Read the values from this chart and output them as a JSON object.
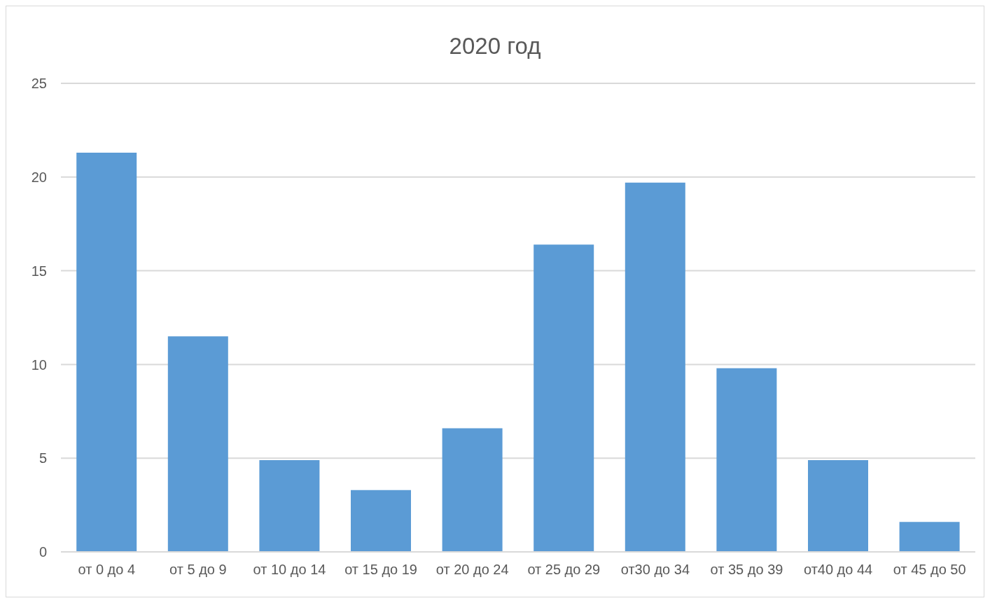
{
  "chart_data": {
    "type": "bar",
    "title": "2020 год",
    "categories": [
      "от 0 до 4",
      "от 5 до 9",
      "от 10 до 14",
      "от 15 до 19",
      "от 20 до 24",
      "от 25 до 29",
      "от30 до 34",
      "от 35 до 39",
      "от40 до 44",
      "от 45 до 50"
    ],
    "values": [
      21.3,
      11.5,
      4.9,
      3.3,
      6.6,
      16.4,
      19.7,
      9.8,
      4.9,
      1.6
    ],
    "color": "#5b9bd5",
    "ylim": [
      0,
      25
    ],
    "yticks": [
      0,
      5,
      10,
      15,
      20,
      25
    ],
    "grid": "y"
  }
}
